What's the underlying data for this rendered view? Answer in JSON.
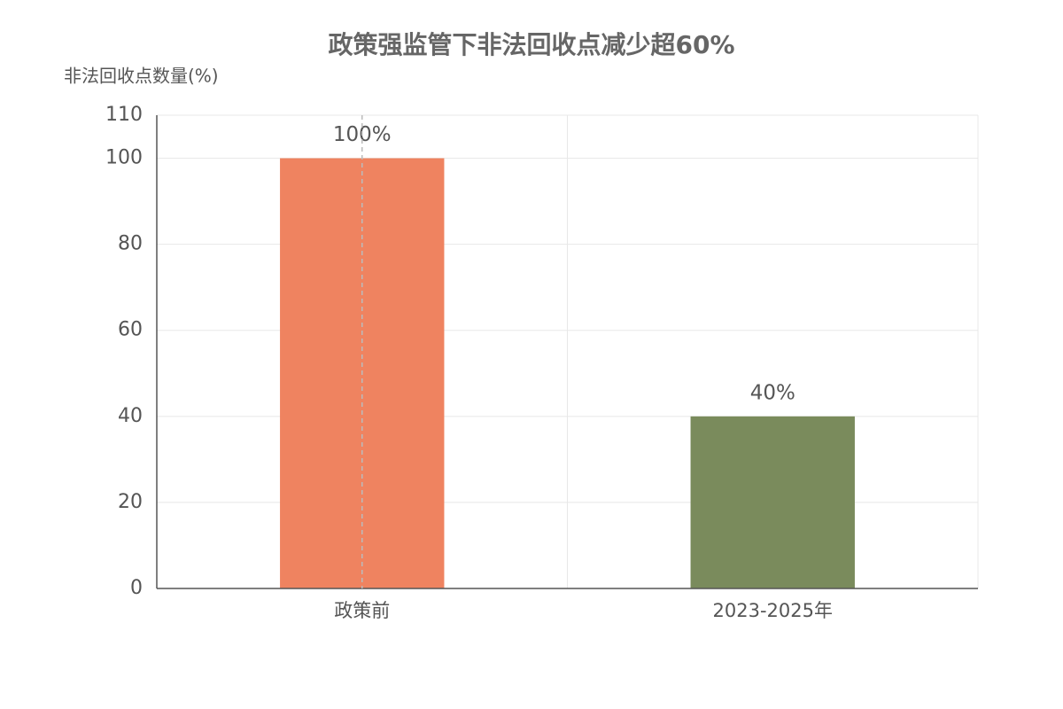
{
  "chart_data": {
    "type": "bar",
    "title": "政策强监管下非法回收点减少超60%",
    "y_label": "非法回收点数量(%)",
    "categories": [
      "政策前",
      "2023-2025年"
    ],
    "values": [
      100,
      40
    ],
    "value_labels": [
      "100%",
      "40%"
    ],
    "colors": [
      "#ef8360",
      "#7a8b5c"
    ],
    "ylim": [
      0,
      110
    ],
    "yticks": [
      0,
      20,
      40,
      60,
      80,
      100,
      110
    ],
    "grid": true
  }
}
